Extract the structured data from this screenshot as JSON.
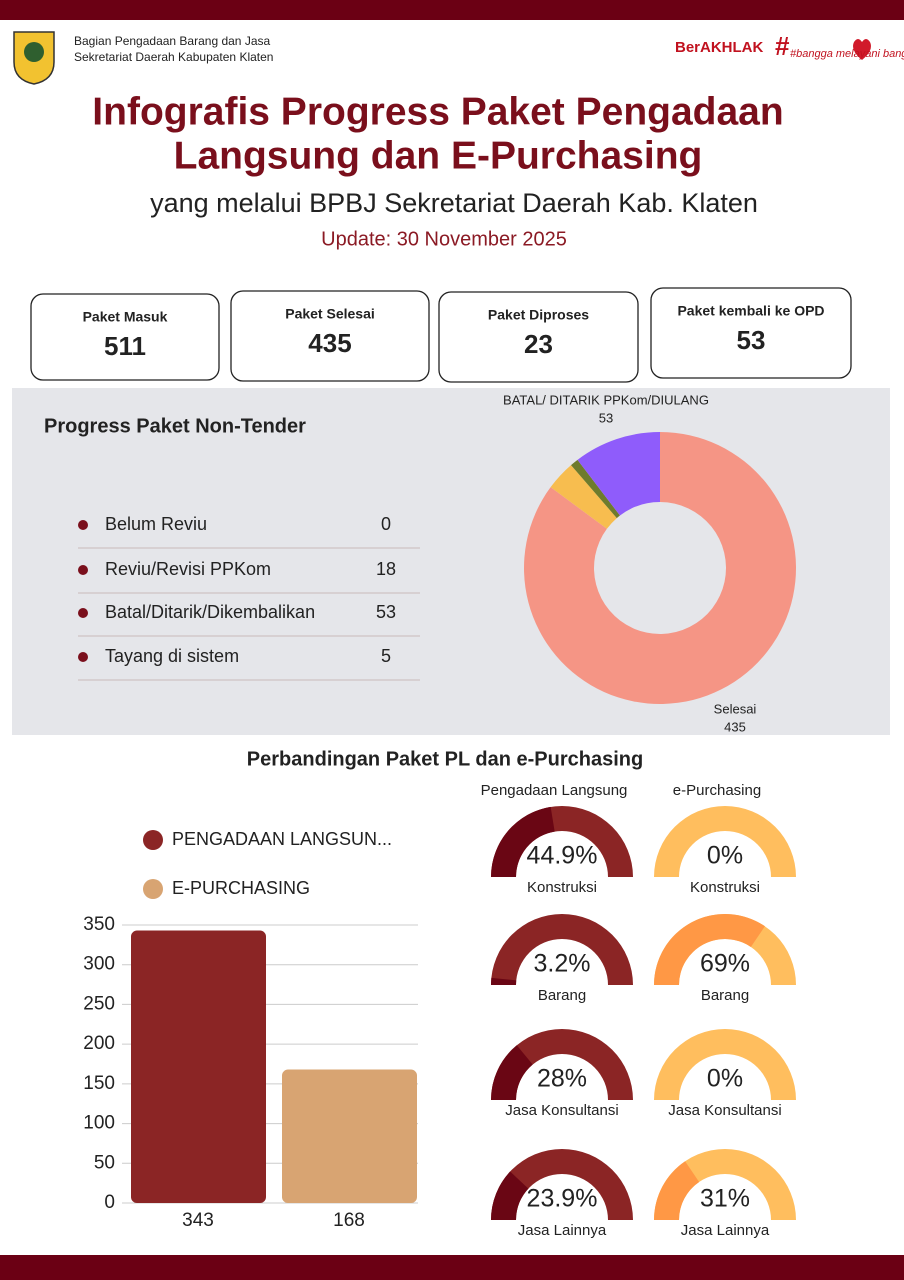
{
  "header": {
    "org_line1": "Bagian Pengadaan Barang dan Jasa",
    "org_line2": "Sekretariat Daerah Kabupaten Klaten",
    "logo_berakhlak": "BerAKHLAK",
    "logo_bangga": "#bangga melayani bangsa",
    "title_line1": "Infografis Progress Paket Pengadaan",
    "title_line2": "Langsung dan E-Purchasing",
    "subtitle": "yang melalui BPBJ Sekretariat Daerah Kab. Klaten",
    "update": "Update: 30 November 2025"
  },
  "stats": [
    {
      "label": "Paket Masuk",
      "value": 511
    },
    {
      "label": "Paket Selesai",
      "value": 435
    },
    {
      "label": "Paket Diproses",
      "value": 23
    },
    {
      "label": "Paket kembali ke OPD",
      "value": 53
    }
  ],
  "non_tender": {
    "title": "Progress Paket Non-Tender",
    "items": [
      {
        "label": "Belum Reviu",
        "value": 0
      },
      {
        "label": "Reviu/Revisi PPKom",
        "value": 18
      },
      {
        "label": "Batal/Ditarik/Dikembalikan",
        "value": 53
      },
      {
        "label": "Tayang di sistem",
        "value": 5
      }
    ],
    "chart_data": {
      "type": "donut",
      "categories": [
        "Selesai",
        null,
        null,
        "BATAL/ DITARIK PPKom/DIULANG"
      ],
      "values": [
        435,
        18,
        5,
        53
      ],
      "colors": [
        "#f59585",
        "#f7bd4f",
        "#6e7b2c",
        "#8f5cfb"
      ]
    }
  },
  "comparison": {
    "title": "Perbandingan Paket PL dan e-Purchasing",
    "bar_chart": {
      "type": "bar",
      "series": [
        {
          "name": "PENGADAAN LANGSUN...",
          "color": "#8b2525",
          "values": [
            343
          ]
        },
        {
          "name": "E-PURCHASING",
          "color": "#d8a472",
          "values": [
            168
          ]
        }
      ],
      "ylim": [
        0,
        350
      ],
      "yticks": [
        0,
        50,
        100,
        150,
        200,
        250,
        300,
        350
      ],
      "grid": true
    },
    "gauges": {
      "type": "gauge",
      "groups": [
        {
          "title": "Pengadaan Langsung",
          "color": "#6a0614",
          "track_color": "#8b2525",
          "categories": [
            "Konstruksi",
            "Barang",
            "Jasa Konsultansi",
            "Jasa Lainnya"
          ],
          "values": [
            44.9,
            3.2,
            28,
            23.9
          ],
          "value_labels": [
            "44.9%",
            "3.2%",
            "28%",
            "23.9%"
          ]
        },
        {
          "title": "e-Purchasing",
          "color": "#ff9845",
          "track_color": "#ffbe5e",
          "categories": [
            "Konstruksi",
            "Barang",
            "Jasa Konsultansi",
            "Jasa Lainnya"
          ],
          "values": [
            0,
            69,
            0,
            31
          ],
          "value_labels": [
            "0%",
            "69%",
            "0%",
            "31%"
          ]
        }
      ]
    }
  }
}
